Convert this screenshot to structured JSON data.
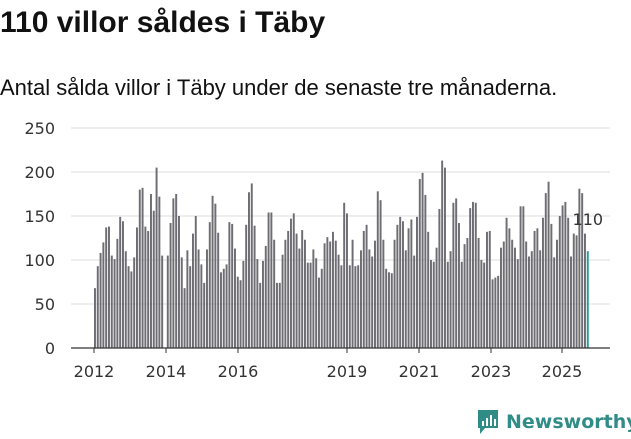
{
  "title": "110 villor såldes i Täby",
  "subtitle": "Antal sålda villor i Täby under de senaste tre månaderna.",
  "brand": "Newsworthy",
  "colors": {
    "bar": "#6e6d73",
    "highlight": "#2a9a93",
    "brand": "#2f8c86",
    "grid": "#dddddd"
  },
  "chart_data": {
    "type": "bar",
    "title": "110 villor såldes i Täby",
    "subtitle": "Antal sålda villor i Täby under de senaste tre månaderna.",
    "xlabel": "",
    "ylabel": "",
    "ylim": [
      0,
      250
    ],
    "yticks": [
      0,
      50,
      100,
      150,
      200,
      250
    ],
    "xticks": [
      "2012",
      "2014",
      "2016",
      "2019",
      "2021",
      "2023",
      "2025"
    ],
    "grid": true,
    "highlight_label": "110",
    "values": [
      68,
      93,
      108,
      120,
      137,
      138,
      105,
      101,
      124,
      149,
      144,
      110,
      93,
      87,
      103,
      137,
      180,
      182,
      138,
      133,
      175,
      156,
      205,
      172,
      105,
      null,
      105,
      142,
      170,
      175,
      150,
      103,
      68,
      111,
      93,
      130,
      150,
      112,
      95,
      74,
      112,
      143,
      173,
      164,
      131,
      86,
      90,
      95,
      143,
      141,
      113,
      81,
      77,
      99,
      140,
      177,
      187,
      139,
      101,
      74,
      99,
      116,
      154,
      154,
      123,
      74,
      74,
      106,
      123,
      133,
      147,
      153,
      130,
      113,
      134,
      123,
      97,
      97,
      112,
      102,
      80,
      90,
      119,
      126,
      121,
      132,
      122,
      106,
      94,
      165,
      153,
      94,
      123,
      93,
      94,
      111,
      133,
      140,
      112,
      104,
      122,
      178,
      168,
      123,
      90,
      86,
      85,
      123,
      140,
      149,
      144,
      111,
      136,
      146,
      105,
      149,
      192,
      199,
      174,
      132,
      100,
      98,
      114,
      158,
      213,
      205,
      98,
      110,
      165,
      170,
      142,
      98,
      118,
      125,
      159,
      166,
      165,
      125,
      100,
      97,
      132,
      133,
      78,
      80,
      82,
      114,
      121,
      148,
      136,
      123,
      114,
      101,
      161,
      161,
      121,
      104,
      110,
      133,
      136,
      111,
      148,
      176,
      189,
      141,
      103,
      123,
      150,
      162,
      166,
      148,
      104,
      130,
      128,
      181,
      176,
      130,
      110
    ]
  }
}
